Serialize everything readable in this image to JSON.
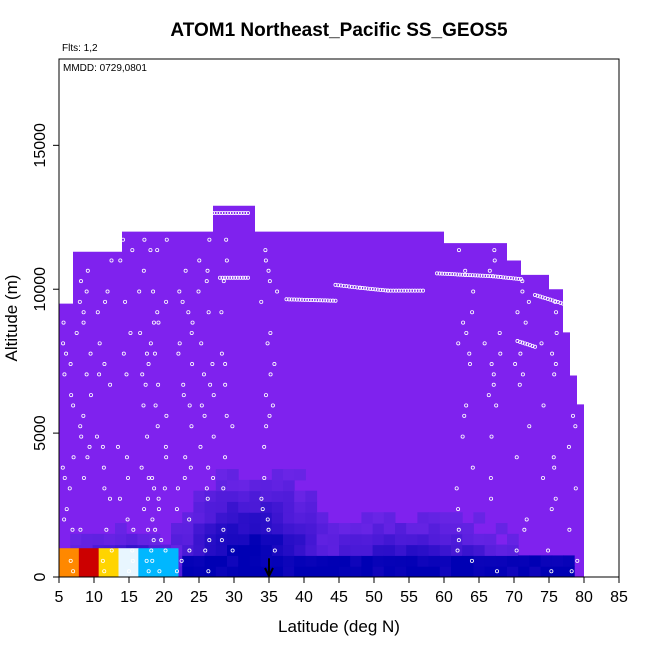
{
  "chart_data": {
    "type": "heatmap",
    "title": "ATOM1 Northeast_Pacific SS_GEOS5",
    "flights_label": "Flts: 1,2",
    "dates_label": "MMDD: 0729,0801",
    "xlabel": "Latitude (deg N)",
    "ylabel": "Altitude (m)",
    "xlim": [
      5,
      85
    ],
    "ylim": [
      0,
      18000
    ],
    "x_ticks": [
      "5",
      "10",
      "15",
      "20",
      "25",
      "30",
      "35",
      "40",
      "45",
      "50",
      "55",
      "60",
      "65",
      "70",
      "75",
      "80",
      "85"
    ],
    "y_ticks": [
      "0",
      "5000",
      "10000",
      "15000"
    ],
    "grid": false,
    "background_color": "#7f22ee",
    "field_top_altitude_by_latitude": [
      [
        5,
        9500
      ],
      [
        6,
        9500
      ],
      [
        7,
        11300
      ],
      [
        10,
        11300
      ],
      [
        14,
        12000
      ],
      [
        20,
        12000
      ],
      [
        27,
        12900
      ],
      [
        32,
        12900
      ],
      [
        33,
        12000
      ],
      [
        48,
        12000
      ],
      [
        58,
        12000
      ],
      [
        60,
        11600
      ],
      [
        66,
        11600
      ],
      [
        69,
        11000
      ],
      [
        71,
        10500
      ],
      [
        75,
        10000
      ],
      [
        77,
        8500
      ],
      [
        78,
        7000
      ],
      [
        79,
        6000
      ],
      [
        80,
        6000
      ]
    ],
    "high_concentration_region": {
      "lat_range": [
        5,
        22
      ],
      "alt_range": [
        0,
        1000
      ],
      "colors_south_to_north": [
        "#ff8800",
        "#cc0000",
        "#ffd400",
        "#e8f6ff",
        "#00b7ff",
        "#00b7ff"
      ]
    },
    "flight_track_segments": [
      {
        "lat": [
          27,
          32
        ],
        "alt": [
          12650,
          12650
        ]
      },
      {
        "lat": [
          28,
          32
        ],
        "alt": [
          10400,
          10400
        ]
      },
      {
        "lat": [
          37.5,
          44.5
        ],
        "alt": [
          9650,
          9600
        ]
      },
      {
        "lat": [
          44.5,
          48,
          52,
          57
        ],
        "alt": [
          10150,
          10050,
          9950,
          9950
        ]
      },
      {
        "lat": [
          59,
          63,
          67,
          71
        ],
        "alt": [
          10550,
          10500,
          10450,
          10350
        ]
      },
      {
        "lat": [
          73,
          77
        ],
        "alt": [
          9800,
          9500
        ]
      },
      {
        "lat": [
          70.5,
          73
        ],
        "alt": [
          8200,
          8000
        ]
      }
    ],
    "marker": {
      "type": "arrow-down",
      "lat": 35,
      "alt": 500
    }
  }
}
